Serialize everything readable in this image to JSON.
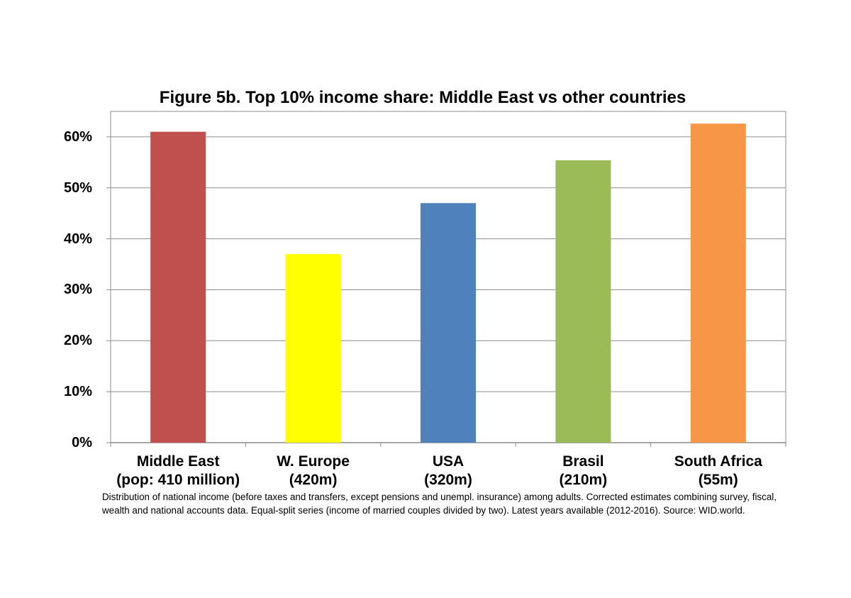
{
  "chart_data": {
    "type": "bar",
    "title": "Figure 5b. Top 10% income share: Middle East vs other countries",
    "categories": [
      [
        "Middle East",
        "(pop: 410 million)"
      ],
      [
        "W. Europe",
        "(420m)"
      ],
      [
        "USA",
        "(320m)"
      ],
      [
        "Brasil",
        "(210m)"
      ],
      [
        "South Africa",
        "(55m)"
      ]
    ],
    "values": [
      61,
      37,
      47,
      55.4,
      62.6
    ],
    "colors": [
      "#c0504d",
      "#ffff00",
      "#4f81bd",
      "#9bbb59",
      "#f79646"
    ],
    "ylim": [
      0,
      65
    ],
    "yticks": [
      0,
      10,
      20,
      30,
      40,
      50,
      60
    ],
    "ytick_labels": [
      "0%",
      "10%",
      "20%",
      "30%",
      "40%",
      "50%",
      "60%"
    ],
    "grid": true,
    "xlabel": "",
    "ylabel": ""
  },
  "footnote": [
    "Distribution of national income (before taxes and transfers, except pensions and unempl. insurance) among adults. Corrected estimates combining survey, fiscal,",
    "wealth and national accounts data. Equal-split series (income of married couples divided by two). Latest years available (2012-2016). Source: WID.world."
  ]
}
